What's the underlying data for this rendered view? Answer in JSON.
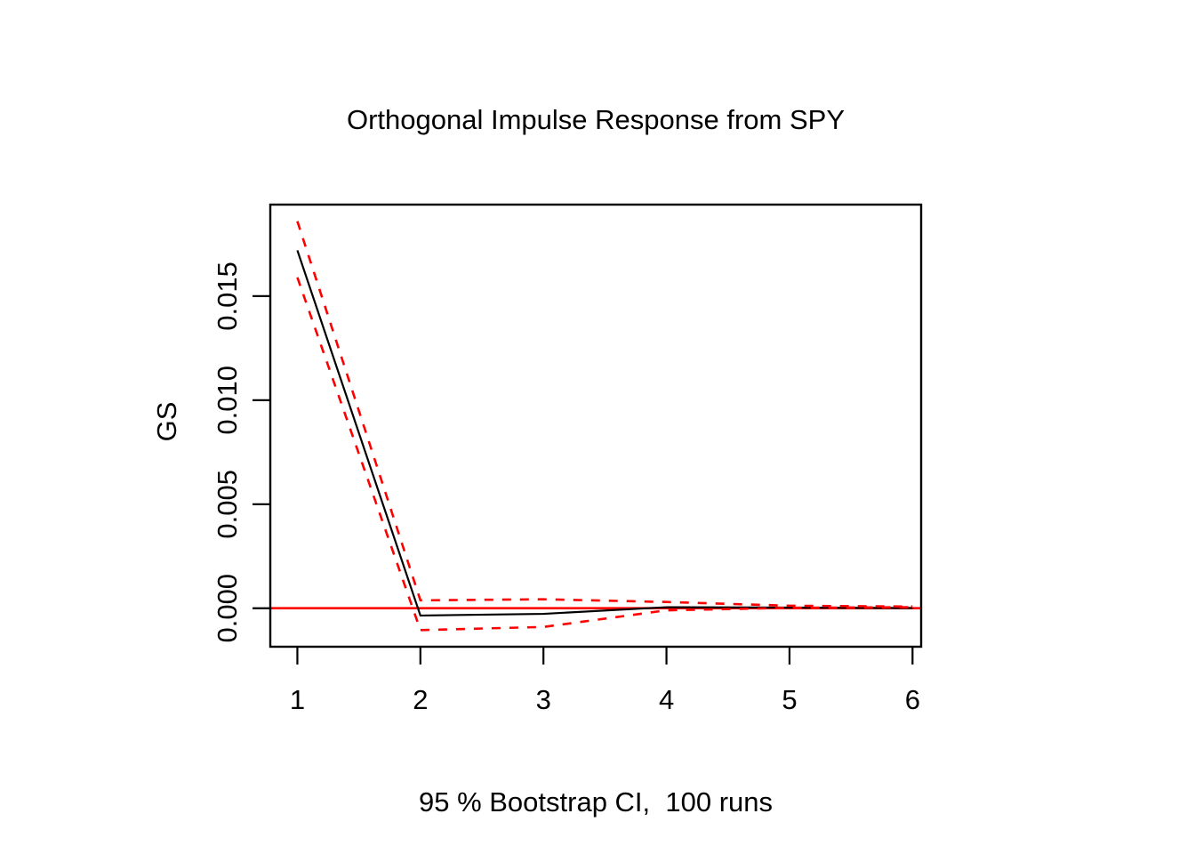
{
  "page": {
    "background": "#ffffff"
  },
  "chart_data": {
    "type": "line",
    "title": "Orthogonal Impulse Response from SPY",
    "subtitle": "95 % Bootstrap CI,  100 runs",
    "ylabel": "GS",
    "xlabel": "",
    "x": [
      1,
      2,
      3,
      4,
      5,
      6
    ],
    "series": [
      {
        "name": "impulse-response",
        "color": "#000000",
        "style": "solid",
        "values": [
          0.0172,
          -0.00035,
          -0.00027,
          5e-05,
          3e-05,
          1e-05
        ]
      },
      {
        "name": "ci-upper",
        "color": "#ff0000",
        "style": "dashed",
        "values": [
          0.0186,
          0.00038,
          0.00043,
          0.0003,
          0.00012,
          8e-05
        ]
      },
      {
        "name": "ci-lower",
        "color": "#ff0000",
        "style": "dashed",
        "values": [
          0.0159,
          -0.00105,
          -0.0009,
          -0.0001,
          2e-05,
          5e-05
        ]
      }
    ],
    "zero_line": {
      "value": 0,
      "color": "#ff0000"
    },
    "x_ticks": {
      "values": [
        1,
        2,
        3,
        4,
        5,
        6
      ],
      "labels": [
        "1",
        "2",
        "3",
        "4",
        "5",
        "6"
      ]
    },
    "y_ticks": {
      "values": [
        0,
        0.005,
        0.01,
        0.015
      ],
      "labels": [
        "0.000",
        "0.005",
        "0.010",
        "0.015"
      ]
    },
    "xlim": [
      0.78,
      6.07
    ],
    "ylim": [
      -0.00185,
      0.0194
    ],
    "grid": false,
    "legend": null,
    "axis_color": "#000000",
    "text_color": "#000000"
  }
}
